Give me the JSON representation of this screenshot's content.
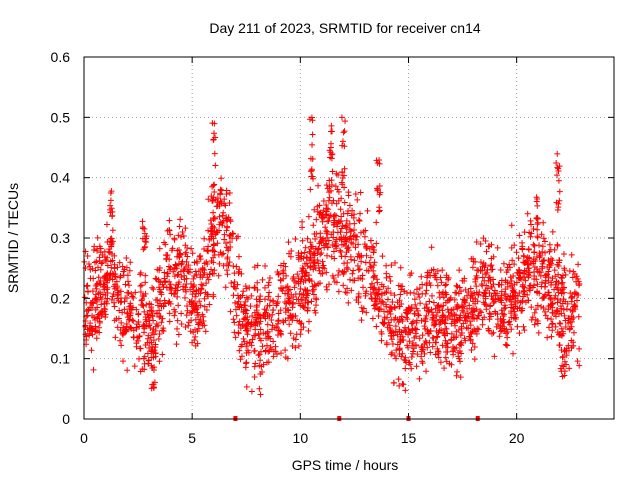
{
  "chart_data": {
    "type": "scatter",
    "title": "Day 211 of 2023, SRMTID for receiver cn14",
    "xlabel": "GPS time / hours",
    "ylabel": "SRMTID / TECUs",
    "xlim": [
      0,
      24.5
    ],
    "ylim": [
      0,
      0.6
    ],
    "x_ticks": [
      0,
      5,
      10,
      15,
      20
    ],
    "x_tick_labels": [
      "0",
      "5",
      "10",
      "15",
      "20"
    ],
    "y_ticks": [
      0,
      0.1,
      0.2,
      0.3,
      0.4,
      0.5,
      0.6
    ],
    "y_tick_labels": [
      "0",
      "0.1",
      "0.2",
      "0.3",
      "0.4",
      "0.5",
      "0.6"
    ],
    "grid": true,
    "marker": "plus",
    "series": [
      {
        "name": "SRMTID",
        "color": "#ff0000",
        "trend": {
          "x": [
            0,
            0.5,
            1,
            1.3,
            1.6,
            2,
            2.5,
            3,
            3.3,
            3.7,
            4.2,
            4.7,
            5,
            5.5,
            6,
            6.3,
            6.7,
            7,
            7.5,
            8,
            8.5,
            9,
            9.5,
            10,
            10.5,
            11,
            11.5,
            12,
            12.5,
            13,
            13.5,
            14,
            14.5,
            15,
            15.5,
            16,
            16.5,
            17,
            17.5,
            18,
            18.5,
            19,
            19.5,
            20,
            20.5,
            21,
            21.5,
            22,
            22.5,
            22.9
          ],
          "y": [
            0.18,
            0.19,
            0.22,
            0.26,
            0.17,
            0.19,
            0.17,
            0.15,
            0.14,
            0.22,
            0.24,
            0.23,
            0.2,
            0.22,
            0.3,
            0.34,
            0.28,
            0.2,
            0.16,
            0.15,
            0.17,
            0.18,
            0.2,
            0.22,
            0.25,
            0.3,
            0.32,
            0.3,
            0.28,
            0.25,
            0.22,
            0.18,
            0.15,
            0.14,
            0.16,
            0.18,
            0.16,
            0.15,
            0.16,
            0.2,
            0.22,
            0.2,
            0.19,
            0.22,
            0.24,
            0.25,
            0.22,
            0.2,
            0.17,
            0.18
          ]
        },
        "spread": 0.042,
        "points_per_hour": 110,
        "spikes": [
          {
            "x": [
              1.2,
              1.35
            ],
            "y": [
              0.28,
              0.38
            ]
          },
          {
            "x": [
              2.7,
              2.9
            ],
            "y": [
              0.28,
              0.34
            ]
          },
          {
            "x": [
              3.1,
              3.25
            ],
            "y": [
              0.05,
              0.12
            ]
          },
          {
            "x": [
              5.9,
              6.1
            ],
            "y": [
              0.35,
              0.5
            ]
          },
          {
            "x": [
              10.4,
              10.6
            ],
            "y": [
              0.38,
              0.53
            ]
          },
          {
            "x": [
              11.3,
              11.5
            ],
            "y": [
              0.38,
              0.51
            ]
          },
          {
            "x": [
              11.9,
              12.1
            ],
            "y": [
              0.38,
              0.5
            ]
          },
          {
            "x": [
              13.5,
              13.7
            ],
            "y": [
              0.32,
              0.43
            ]
          },
          {
            "x": [
              20.9,
              21.0
            ],
            "y": [
              0.3,
              0.37
            ]
          },
          {
            "x": [
              21.8,
              22.0
            ],
            "y": [
              0.33,
              0.44
            ]
          },
          {
            "x": [
              22.0,
              22.3
            ],
            "y": [
              0.07,
              0.12
            ]
          }
        ],
        "zero_markers_x": [
          7.0,
          11.8,
          15.0,
          18.2
        ]
      }
    ]
  }
}
